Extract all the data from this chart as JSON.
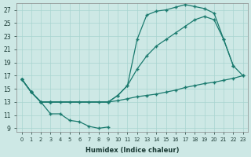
{
  "xlabel": "Humidex (Indice chaleur)",
  "bg_color": "#cde8e5",
  "grid_color": "#a8d4d0",
  "line_color": "#1a7a6e",
  "xlim": [
    -0.5,
    23.5
  ],
  "ylim": [
    8.5,
    28.0
  ],
  "xticks": [
    0,
    1,
    2,
    3,
    4,
    5,
    6,
    7,
    8,
    9,
    10,
    11,
    12,
    13,
    14,
    15,
    16,
    17,
    18,
    19,
    20,
    21,
    22,
    23
  ],
  "yticks": [
    9,
    11,
    13,
    15,
    17,
    19,
    21,
    23,
    25,
    27
  ],
  "curve_dip_x": [
    0,
    1,
    2,
    3,
    4,
    5,
    6,
    7,
    8,
    9
  ],
  "curve_dip_y": [
    16.5,
    14.5,
    13.0,
    11.2,
    11.2,
    10.2,
    10.0,
    9.3,
    9.0,
    9.2
  ],
  "curve_flat_x": [
    0,
    1,
    2,
    3,
    4,
    5,
    6,
    7,
    8,
    9,
    10,
    11,
    12,
    13,
    14,
    15,
    16,
    17,
    18,
    19,
    20,
    21,
    22,
    23
  ],
  "curve_flat_y": [
    16.5,
    14.5,
    13.0,
    13.0,
    13.0,
    13.0,
    13.0,
    13.0,
    13.0,
    13.0,
    13.2,
    13.5,
    13.8,
    14.0,
    14.2,
    14.5,
    14.8,
    15.2,
    15.5,
    15.8,
    16.0,
    16.3,
    16.6,
    17.0
  ],
  "curve_mid_x": [
    0,
    1,
    2,
    3,
    9,
    10,
    11,
    12,
    13,
    14,
    15,
    16,
    17,
    18,
    19,
    20,
    21,
    22,
    23
  ],
  "curve_mid_y": [
    16.5,
    14.5,
    13.0,
    13.0,
    13.0,
    14.0,
    15.5,
    18.0,
    20.0,
    21.5,
    22.5,
    23.5,
    24.5,
    25.5,
    26.0,
    25.5,
    22.5,
    18.5,
    17.0
  ],
  "curve_top_x": [
    0,
    1,
    2,
    3,
    9,
    10,
    11,
    12,
    13,
    14,
    15,
    16,
    17,
    18,
    19,
    20,
    21,
    22
  ],
  "curve_top_y": [
    16.5,
    14.5,
    13.0,
    13.0,
    13.0,
    14.0,
    15.5,
    22.5,
    26.2,
    26.8,
    27.0,
    27.4,
    27.8,
    27.5,
    27.2,
    26.5,
    22.5,
    18.5
  ]
}
